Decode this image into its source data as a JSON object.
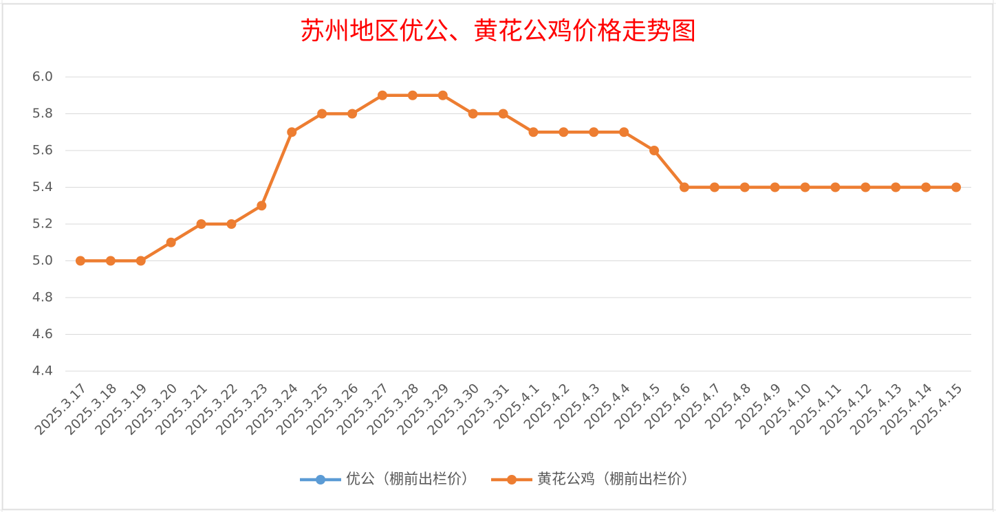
{
  "chart_data": {
    "type": "line",
    "title": "苏州地区优公、黄花公鸡价格走势图",
    "categories": [
      "2025.3.17",
      "2025.3.18",
      "2025.3.19",
      "2025.3.20",
      "2025.3.21",
      "2025.3.22",
      "2025.3.23",
      "2025.3.24",
      "2025.3.25",
      "2025.3.26",
      "2025.3.27",
      "2025.3.28",
      "2025.3.29",
      "2025.3.30",
      "2025.3.31",
      "2025.4.1",
      "2025.4.2",
      "2025.4.3",
      "2025.4.4",
      "2025.4.5",
      "2025.4.6",
      "2025.4.7",
      "2025.4.8",
      "2025.4.9",
      "2025.4.10",
      "2025.4.11",
      "2025.4.12",
      "2025.4.13",
      "2025.4.14",
      "2025.4.15"
    ],
    "series": [
      {
        "name": "优公（棚前出栏价）",
        "color": "#5b9bd5",
        "values": [
          null,
          null,
          null,
          null,
          null,
          null,
          null,
          null,
          null,
          null,
          null,
          null,
          null,
          null,
          null,
          null,
          null,
          null,
          null,
          null,
          null,
          null,
          null,
          null,
          null,
          null,
          null,
          null,
          null,
          null
        ]
      },
      {
        "name": "黄花公鸡（棚前出栏价）",
        "color": "#ed7d31",
        "values": [
          5.0,
          5.0,
          5.0,
          5.1,
          5.2,
          5.2,
          5.3,
          5.7,
          5.8,
          5.8,
          5.9,
          5.9,
          5.9,
          5.8,
          5.8,
          5.7,
          5.7,
          5.7,
          5.7,
          5.6,
          5.4,
          5.4,
          5.4,
          5.4,
          5.4,
          5.4,
          5.4,
          5.4,
          5.4,
          5.4
        ]
      }
    ],
    "ylim": [
      4.4,
      6.0
    ],
    "yticks": [
      4.4,
      4.6,
      4.8,
      {
        "value": 5.0,
        "label": "5.0"
      },
      5.2,
      5.4,
      5.6,
      5.8,
      {
        "value": 6.0,
        "label": "6.0"
      }
    ],
    "grid": true,
    "legend": "bottom"
  }
}
